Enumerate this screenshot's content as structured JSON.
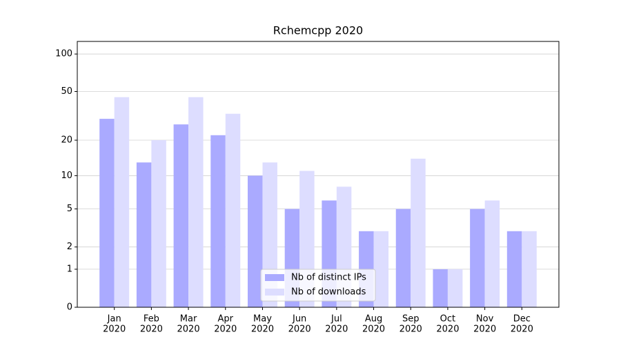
{
  "chart_data": {
    "type": "bar",
    "title": "Rchemcpp 2020",
    "categories": [
      [
        "Jan",
        "2020"
      ],
      [
        "Feb",
        "2020"
      ],
      [
        "Mar",
        "2020"
      ],
      [
        "Apr",
        "2020"
      ],
      [
        "May",
        "2020"
      ],
      [
        "Jun",
        "2020"
      ],
      [
        "Jul",
        "2020"
      ],
      [
        "Aug",
        "2020"
      ],
      [
        "Sep",
        "2020"
      ],
      [
        "Oct",
        "2020"
      ],
      [
        "Nov",
        "2020"
      ],
      [
        "Dec",
        "2020"
      ]
    ],
    "series": [
      {
        "name": "Nb of distinct IPs",
        "color": "#aaaaff",
        "values": [
          30,
          13,
          27,
          22,
          10,
          5,
          6,
          3,
          5,
          1,
          5,
          3
        ]
      },
      {
        "name": "Nb of downloads",
        "color": "#ddddff",
        "values": [
          45,
          20,
          45,
          33,
          13,
          11,
          8,
          3,
          14,
          1,
          6,
          3
        ]
      }
    ],
    "yscale": "log1p",
    "ylim": [
      0,
      126
    ],
    "yticks": [
      0,
      1,
      2,
      5,
      10,
      20,
      50,
      100
    ],
    "grid": true,
    "legend": "lower center"
  }
}
